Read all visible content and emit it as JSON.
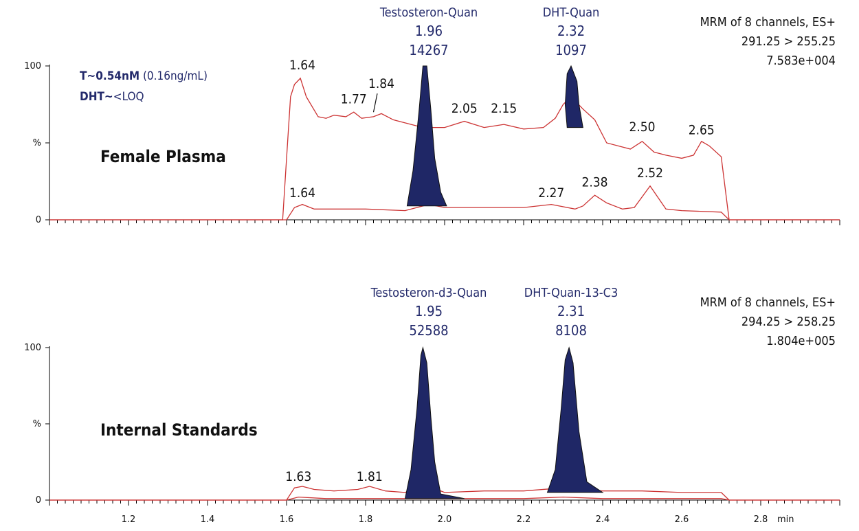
{
  "chart_data": [
    {
      "type": "line",
      "panel": "top",
      "sample_label": "Female Plasma",
      "y_tick_labels": [
        "100",
        "%",
        "0"
      ],
      "xlim": [
        1.0,
        3.0
      ],
      "ylim": [
        0,
        100
      ],
      "conc_note": {
        "t_bold": "T~0.54nM",
        "t_plain": " (0.16ng/mL)",
        "dht_bold": "DHT~",
        "dht_plain": "<LOQ"
      },
      "channel_info": [
        "MRM of 8 channels, ES+",
        "291.25 > 255.25",
        "7.583e+004"
      ],
      "peak_labels": [
        {
          "name": "Testosteron-Quan",
          "rt": "1.96",
          "area": "14267"
        },
        {
          "name": "DHT-Quan",
          "rt": "2.32",
          "area": "1097"
        }
      ],
      "series": [
        {
          "x": [
            1.0,
            1.59,
            1.6,
            1.61,
            1.62,
            1.635,
            1.65,
            1.68,
            1.7,
            1.72,
            1.75,
            1.77,
            1.79,
            1.82,
            1.84,
            1.87,
            1.9,
            1.93,
            1.96,
            2.0,
            2.05,
            2.1,
            2.15,
            2.2,
            2.25,
            2.28,
            2.3,
            2.32,
            2.35,
            2.38,
            2.41,
            2.44,
            2.47,
            2.5,
            2.53,
            2.56,
            2.6,
            2.63,
            2.65,
            2.67,
            2.7,
            2.72,
            3.0
          ],
          "y": [
            0,
            0,
            40,
            80,
            88,
            92,
            80,
            67,
            66,
            68,
            67,
            70,
            66,
            67,
            69,
            65,
            63,
            61,
            60,
            60,
            64,
            60,
            62,
            59,
            60,
            66,
            75,
            80,
            72,
            65,
            50,
            48,
            46,
            51,
            44,
            42,
            40,
            42,
            51,
            48,
            41,
            0,
            0
          ]
        },
        {
          "x": [
            1.0,
            1.6,
            1.62,
            1.64,
            1.67,
            1.72,
            1.8,
            1.9,
            1.96,
            2.0,
            2.1,
            2.2,
            2.27,
            2.33,
            2.35,
            2.38,
            2.41,
            2.45,
            2.48,
            2.52,
            2.56,
            2.6,
            2.7,
            2.72,
            3.0
          ],
          "y": [
            0,
            0,
            8,
            10,
            7,
            7,
            7,
            6,
            10,
            8,
            8,
            8,
            10,
            7,
            9,
            16,
            11,
            7,
            8,
            22,
            7,
            6,
            5,
            0,
            0
          ]
        }
      ],
      "filled_peaks": [
        {
          "x": [
            1.905,
            1.92,
            1.935,
            1.945,
            1.955,
            1.965,
            1.975,
            1.99,
            2.005
          ],
          "y": [
            9,
            32,
            70,
            100,
            100,
            72,
            40,
            18,
            9
          ]
        },
        {
          "x": [
            2.31,
            2.305,
            2.31,
            2.32,
            2.335,
            2.34,
            2.35
          ],
          "y": [
            60,
            75,
            95,
            100,
            90,
            75,
            60
          ]
        }
      ],
      "rt_labels": [
        {
          "x": 1.64,
          "y": 95,
          "text": "1.64"
        },
        {
          "x": 1.77,
          "y": 73,
          "text": "1.77"
        },
        {
          "x": 1.84,
          "y": 83,
          "text": "1.84"
        },
        {
          "x": 2.05,
          "y": 67,
          "text": "2.05"
        },
        {
          "x": 2.15,
          "y": 67,
          "text": "2.15"
        },
        {
          "x": 2.5,
          "y": 55,
          "text": "2.50"
        },
        {
          "x": 2.65,
          "y": 53,
          "text": "2.65"
        },
        {
          "x": 1.64,
          "y": 12,
          "text": "1.64"
        },
        {
          "x": 2.27,
          "y": 12,
          "text": "2.27"
        },
        {
          "x": 2.38,
          "y": 19,
          "text": "2.38"
        },
        {
          "x": 2.52,
          "y": 25,
          "text": "2.52"
        }
      ]
    },
    {
      "type": "line",
      "panel": "bottom",
      "sample_label": "Internal Standards",
      "y_tick_labels": [
        "100",
        "%",
        "0"
      ],
      "xlim": [
        1.0,
        3.0
      ],
      "ylim": [
        0,
        100
      ],
      "channel_info": [
        "MRM of 8 channels, ES+",
        "294.25 > 258.25",
        "1.804e+005"
      ],
      "peak_labels": [
        {
          "name": "Testosteron-d3-Quan",
          "rt": "1.95",
          "area": "52588"
        },
        {
          "name": "DHT-Quan-13-C3",
          "rt": "2.31",
          "area": "8108"
        }
      ],
      "series": [
        {
          "x": [
            1.0,
            1.6,
            1.62,
            1.64,
            1.67,
            1.72,
            1.78,
            1.81,
            1.85,
            1.9,
            1.95,
            2.0,
            2.1,
            2.2,
            2.3,
            2.4,
            2.5,
            2.6,
            2.7,
            2.72,
            3.0
          ],
          "y": [
            0,
            0,
            8,
            9,
            7,
            6,
            7,
            9,
            6,
            5,
            10,
            5,
            6,
            6,
            8,
            6,
            6,
            5,
            5,
            0,
            0
          ]
        },
        {
          "x": [
            1.0,
            1.6,
            1.63,
            1.7,
            1.8,
            1.9,
            2.0,
            2.1,
            2.2,
            2.3,
            2.4,
            2.5,
            2.6,
            2.7,
            2.72,
            3.0
          ],
          "y": [
            0,
            0,
            2,
            1,
            1,
            1,
            1,
            1,
            1,
            2,
            1,
            1,
            1,
            1,
            0,
            0
          ]
        }
      ],
      "filled_peaks": [
        {
          "x": [
            1.9,
            1.915,
            1.93,
            1.94,
            1.945,
            1.955,
            1.965,
            1.975,
            1.99,
            2.05
          ],
          "y": [
            1,
            20,
            60,
            95,
            100,
            90,
            55,
            25,
            4,
            1
          ]
        },
        {
          "x": [
            2.26,
            2.28,
            2.295,
            2.305,
            2.315,
            2.325,
            2.34,
            2.36,
            2.4
          ],
          "y": [
            5,
            20,
            60,
            92,
            100,
            90,
            45,
            12,
            5
          ]
        }
      ],
      "rt_labels": [
        {
          "x": 1.63,
          "y": 10,
          "text": "1.63"
        },
        {
          "x": 1.81,
          "y": 10,
          "text": "1.81"
        }
      ]
    }
  ],
  "x_axis": {
    "tick_labels": [
      "1.2",
      "1.4",
      "1.6",
      "1.8",
      "2.0",
      "2.2",
      "2.4",
      "2.6",
      "2.8"
    ],
    "unit": "min"
  },
  "colors": {
    "trace": "#cc3333",
    "peak_fill": "#1f2766",
    "label_blue": "#232a6b",
    "axis": "#000000"
  }
}
